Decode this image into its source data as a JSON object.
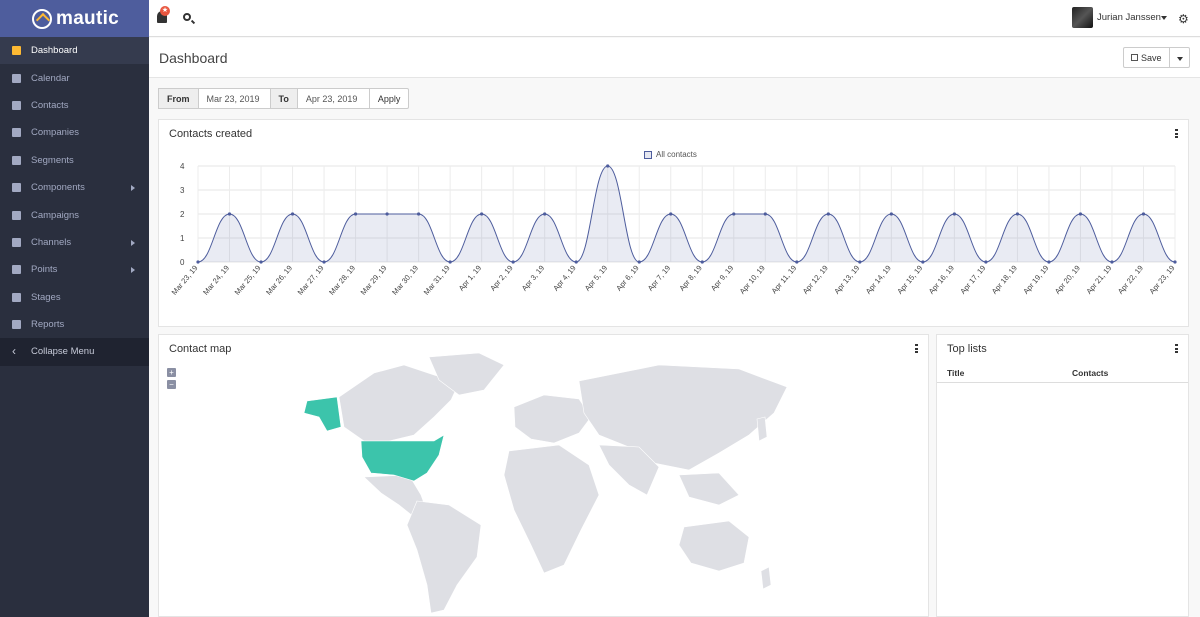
{
  "brand": {
    "name": "mautic"
  },
  "sidebar": {
    "items": [
      {
        "label": "Dashboard",
        "icon": "dashboard-icon",
        "active": true,
        "has_caret": false
      },
      {
        "label": "Calendar",
        "icon": "calendar-icon",
        "active": false,
        "has_caret": false
      },
      {
        "label": "Contacts",
        "icon": "user-icon",
        "active": false,
        "has_caret": false
      },
      {
        "label": "Companies",
        "icon": "building-icon",
        "active": false,
        "has_caret": false
      },
      {
        "label": "Segments",
        "icon": "pie-icon",
        "active": false,
        "has_caret": false
      },
      {
        "label": "Components",
        "icon": "puzzle-icon",
        "active": false,
        "has_caret": true
      },
      {
        "label": "Campaigns",
        "icon": "clock-icon",
        "active": false,
        "has_caret": false
      },
      {
        "label": "Channels",
        "icon": "rss-icon",
        "active": false,
        "has_caret": true
      },
      {
        "label": "Points",
        "icon": "calculator-icon",
        "active": false,
        "has_caret": true
      },
      {
        "label": "Stages",
        "icon": "tachometer-icon",
        "active": false,
        "has_caret": false
      },
      {
        "label": "Reports",
        "icon": "line-chart-icon",
        "active": false,
        "has_caret": false
      }
    ],
    "collapse_label": "Collapse Menu"
  },
  "topbar": {
    "user_name": "Jurian Janssen",
    "colors": {
      "brand": "#4e5d9d",
      "sidebar": "#2a2f3e",
      "accent": "#fdb933",
      "badge": "#e8563f"
    }
  },
  "page": {
    "title": "Dashboard",
    "save_label": "Save"
  },
  "date_filter": {
    "from_label": "From",
    "from_value": "Mar 23, 2019",
    "to_label": "To",
    "to_value": "Apr 23, 2019",
    "apply_label": "Apply"
  },
  "widgets": {
    "contacts_created": {
      "title": "Contacts created"
    },
    "contact_map": {
      "title": "Contact map",
      "zoom_in": "+",
      "zoom_out": "−",
      "highlight_color": "#3cc4ab",
      "land_color": "#dedfe4"
    },
    "top_lists": {
      "title": "Top lists",
      "col_title": "Title",
      "col_contacts": "Contacts"
    }
  },
  "chart_data": {
    "type": "line",
    "title": "",
    "xlabel": "",
    "ylabel": "",
    "ylim": [
      0,
      4
    ],
    "yticks": [
      0,
      1,
      2,
      3,
      4
    ],
    "grid": true,
    "legend": "top-center",
    "series": [
      {
        "name": "All contacts",
        "color": "#4e5d9d",
        "values": [
          0,
          2,
          0,
          2,
          0,
          2,
          2,
          2,
          0,
          2,
          0,
          2,
          0,
          4,
          0,
          2,
          0,
          2,
          2,
          0,
          2,
          0,
          2,
          0,
          2,
          0,
          2,
          0,
          2,
          0,
          2,
          0
        ]
      }
    ],
    "categories": [
      "Mar 23, 19",
      "Mar 24, 19",
      "Mar 25, 19",
      "Mar 26, 19",
      "Mar 27, 19",
      "Mar 28, 19",
      "Mar 29, 19",
      "Mar 30, 19",
      "Mar 31, 19",
      "Apr 1, 19",
      "Apr 2, 19",
      "Apr 3, 19",
      "Apr 4, 19",
      "Apr 5, 19",
      "Apr 6, 19",
      "Apr 7, 19",
      "Apr 8, 19",
      "Apr 9, 19",
      "Apr 10, 19",
      "Apr 11, 19",
      "Apr 12, 19",
      "Apr 13, 19",
      "Apr 14, 19",
      "Apr 15, 19",
      "Apr 16, 19",
      "Apr 17, 19",
      "Apr 18, 19",
      "Apr 19, 19",
      "Apr 20, 19",
      "Apr 21, 19",
      "Apr 22, 19",
      "Apr 23, 19"
    ]
  }
}
